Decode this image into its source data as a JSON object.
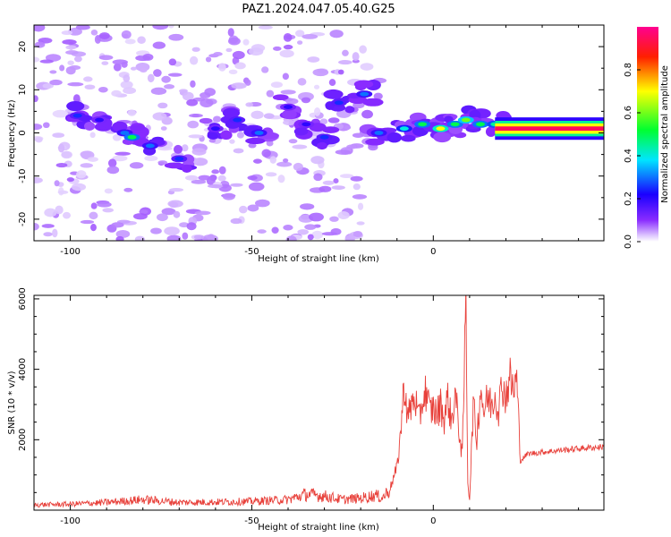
{
  "figure": {
    "title": "PAZ1.2024.047.05.40.G25"
  },
  "chart_data": [
    {
      "id": "spectrogram",
      "type": "heatmap",
      "title": "PAZ1.2024.047.05.40.G25",
      "xlabel": "Height of straight line (km)",
      "ylabel": "Frequency (Hz)",
      "xlim": [
        -110,
        47
      ],
      "ylim": [
        -25,
        25
      ],
      "x_ticks": [
        -100,
        -50,
        0
      ],
      "y_ticks": [
        -20,
        -10,
        0,
        10,
        20
      ],
      "colorbar": {
        "label": "Normalized spectral amplitude",
        "range": [
          0,
          1
        ],
        "ticks": [
          0.0,
          0.2,
          0.4,
          0.6,
          0.8
        ],
        "colors": [
          "#ffffff",
          "#6000ff",
          "#0000ff",
          "#00ffff",
          "#00ff00",
          "#ffff00",
          "#ff0000",
          "#ff0090"
        ]
      },
      "features": [
        {
          "description": "scattered noise",
          "x_range": [
            -110,
            -10
          ],
          "y_range": [
            -25,
            25
          ],
          "amplitude": 0.05
        },
        {
          "description": "dispersive signal band",
          "points": [
            [
              -98,
              4,
              0.25
            ],
            [
              -92,
              3,
              0.2
            ],
            [
              -85,
              0,
              0.3
            ],
            [
              -83,
              -1,
              0.5
            ],
            [
              -78,
              -3,
              0.3
            ],
            [
              -70,
              -6,
              0.25
            ],
            [
              -60,
              1,
              0.2
            ],
            [
              -54,
              3,
              0.25
            ],
            [
              -48,
              0,
              0.3
            ],
            [
              -40,
              6,
              0.2
            ],
            [
              -35,
              2,
              0.2
            ],
            [
              -30,
              -1,
              0.25
            ],
            [
              -26,
              7,
              0.25
            ],
            [
              -19,
              9,
              0.3
            ],
            [
              -15,
              0,
              0.3
            ],
            [
              -8,
              1,
              0.4
            ],
            [
              -3,
              2,
              0.5
            ],
            [
              2,
              1,
              0.7
            ],
            [
              6,
              2,
              0.5
            ],
            [
              9,
              3,
              0.6
            ],
            [
              13,
              2,
              0.5
            ],
            [
              17,
              2,
              0.45
            ]
          ]
        },
        {
          "description": "steady carrier",
          "x_range": [
            17,
            47
          ],
          "y": 1,
          "amplitude": 0.95
        }
      ]
    },
    {
      "id": "snr",
      "type": "line",
      "xlabel": "Height of straight line (km)",
      "ylabel": "SNR (10 * v/v)",
      "xlim": [
        -110,
        47
      ],
      "ylim": [
        0,
        6100
      ],
      "x_ticks": [
        -100,
        -50,
        0
      ],
      "y_ticks": [
        2000,
        4000,
        6000
      ],
      "color": "#e8403a",
      "series": [
        {
          "x": [
            -110,
            -100,
            -90,
            -80,
            -70,
            -60,
            -50,
            -40,
            -35,
            -30,
            -25,
            -20,
            -16,
            -14,
            -12,
            -10,
            -9,
            -8,
            -7,
            -6,
            -5,
            -4,
            -3,
            -2,
            -1,
            0,
            1,
            2,
            3,
            4,
            5,
            6,
            7,
            8,
            9,
            9.5,
            10,
            11,
            12,
            13,
            14,
            15,
            16,
            17,
            18,
            19,
            20,
            21,
            22,
            23,
            24,
            25,
            26,
            30,
            35,
            40,
            47
          ],
          "y": [
            150,
            170,
            220,
            300,
            220,
            230,
            250,
            300,
            450,
            400,
            300,
            340,
            420,
            350,
            600,
            1200,
            2200,
            3600,
            2600,
            3000,
            3200,
            2500,
            3100,
            3400,
            2800,
            2900,
            2700,
            3000,
            2600,
            3200,
            2500,
            3300,
            2400,
            1500,
            6000,
            800,
            300,
            3000,
            2000,
            3500,
            2800,
            3200,
            3000,
            3300,
            2900,
            3600,
            3200,
            3800,
            3400,
            3700,
            1400,
            1500,
            1600,
            1650,
            1700,
            1750,
            1800
          ]
        }
      ]
    }
  ]
}
